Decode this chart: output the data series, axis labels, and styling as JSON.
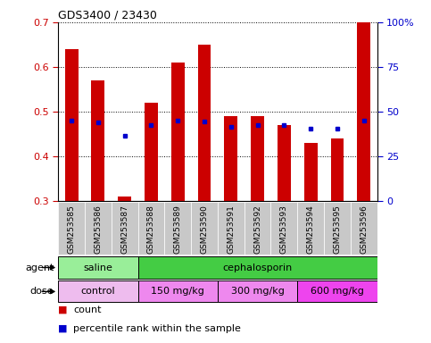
{
  "title": "GDS3400 / 23430",
  "samples": [
    "GSM253585",
    "GSM253586",
    "GSM253587",
    "GSM253588",
    "GSM253589",
    "GSM253590",
    "GSM253591",
    "GSM253592",
    "GSM253593",
    "GSM253594",
    "GSM253595",
    "GSM253596"
  ],
  "bar_values": [
    0.64,
    0.57,
    0.31,
    0.52,
    0.61,
    0.65,
    0.49,
    0.49,
    0.47,
    0.43,
    0.44,
    0.7
  ],
  "percentile_values": [
    0.48,
    0.475,
    0.445,
    0.47,
    0.48,
    0.477,
    0.465,
    0.47,
    0.47,
    0.462,
    0.462,
    0.48
  ],
  "bar_color": "#CC0000",
  "percentile_color": "#0000CC",
  "ymin": 0.3,
  "ymax": 0.7,
  "yticks": [
    0.3,
    0.4,
    0.5,
    0.6,
    0.7
  ],
  "right_yticks": [
    0,
    25,
    50,
    75,
    100
  ],
  "right_yticklabels": [
    "0",
    "25",
    "50",
    "75",
    "100%"
  ],
  "legend_count_label": "count",
  "legend_percentile_label": "percentile rank within the sample",
  "tick_label_color_left": "#CC0000",
  "tick_label_color_right": "#0000CC",
  "bar_bottom": 0.3,
  "xtick_bg_color": "#C8C8C8",
  "agent_saline_color": "#99EE99",
  "agent_cephalo_color": "#44CC44",
  "dose_control_color": "#EEBCEE",
  "dose_150_color": "#EE88EE",
  "dose_300_color": "#EE88EE",
  "dose_600_color": "#EE44EE"
}
